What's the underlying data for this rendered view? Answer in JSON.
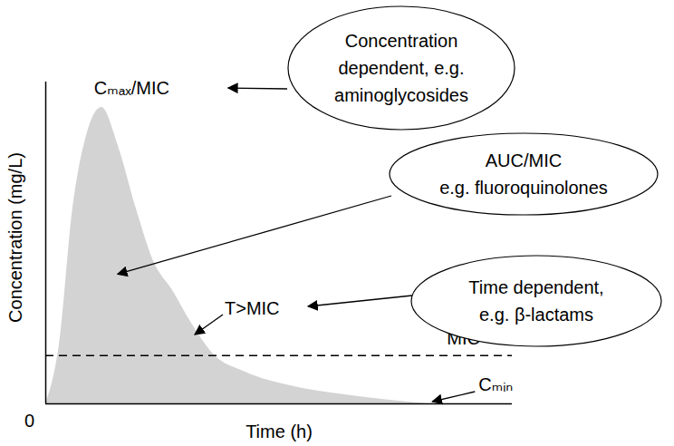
{
  "chart_data": {
    "type": "area",
    "x_label": "Time (h)",
    "y_label": "Concentration (mg/L)",
    "x": [
      0,
      0.29,
      0.58,
      0.87,
      1.2,
      1.55,
      1.94,
      2.33,
      2.72,
      3.11,
      3.59,
      4.27,
      5.24,
      6.41,
      7.38,
      8.16
    ],
    "values": [
      0,
      1.83,
      6.06,
      8.31,
      9.21,
      8.03,
      6.06,
      4.37,
      3.52,
      2.54,
      1.55,
      0.99,
      0.56,
      0.28,
      0.11,
      0
    ],
    "color": "#d3d3d3",
    "xlim": [
      0,
      10
    ],
    "ylim": [
      0,
      10
    ],
    "xticks": [
      0
    ],
    "yticks": [],
    "tick_labels": "x",
    "mic": 1.5,
    "labels": {
      "cmax": "Cₘₐₓ/MIC",
      "cmin": "Cₘᵢₙ",
      "mic": "MIC",
      "t_above_mic": "T>MIC"
    },
    "pk_parameters": [
      {
        "lines": [
          "Concentration",
          "dependent, e.g.",
          "aminoglycosides"
        ]
      },
      {
        "lines": [
          "AUC/MIC",
          "e.g. fluoroquinolones"
        ]
      },
      {
        "lines": [
          "Time dependent,",
          "e.g. β-lactams"
        ]
      }
    ]
  }
}
